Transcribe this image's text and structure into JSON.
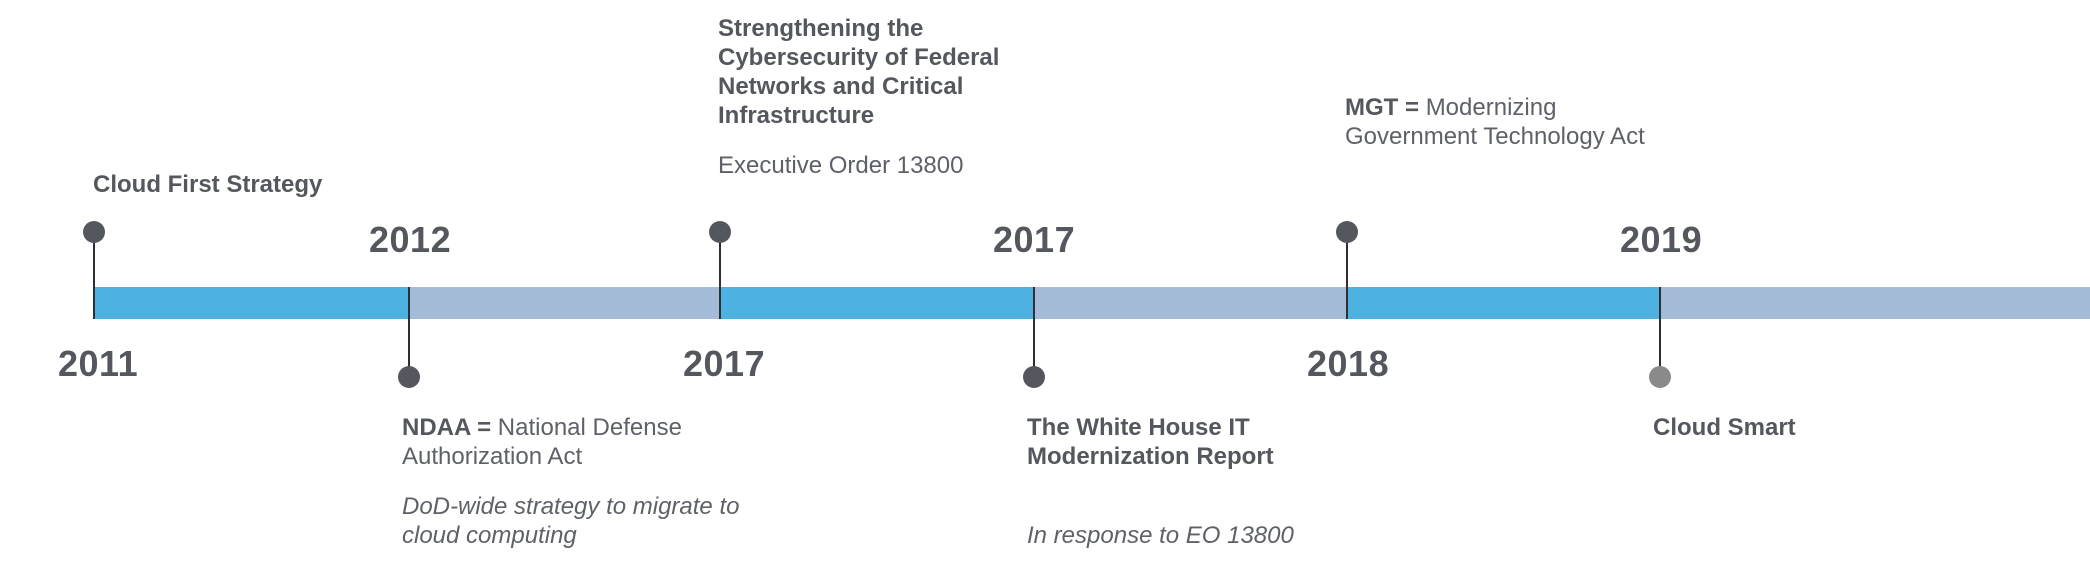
{
  "timeline": {
    "segments": [
      "blue",
      "gray",
      "blue",
      "gray",
      "blue",
      "gray"
    ],
    "events": [
      {
        "id": "cloud-first",
        "year": "2011",
        "title": "Cloud First Strategy"
      },
      {
        "id": "ndaa",
        "year": "2012",
        "acronym": "NDAA =",
        "definition": "National Defense Authorization Act",
        "note": "DoD-wide strategy to migrate to cloud computing"
      },
      {
        "id": "eo-13800",
        "year": "2017",
        "title": "Strengthening the Cybersecurity of Federal Networks and Critical Infrastructure",
        "subtitle": "Executive Order 13800"
      },
      {
        "id": "wh-it-report",
        "year": "2017",
        "title": "The White House IT Modernization Report",
        "note": "In response to EO 13800"
      },
      {
        "id": "mgt",
        "year": "2018",
        "acronym": "MGT =",
        "definition": "Modernizing Government Technology Act"
      },
      {
        "id": "cloud-smart",
        "year": "2019",
        "title": "Cloud Smart"
      }
    ]
  }
}
